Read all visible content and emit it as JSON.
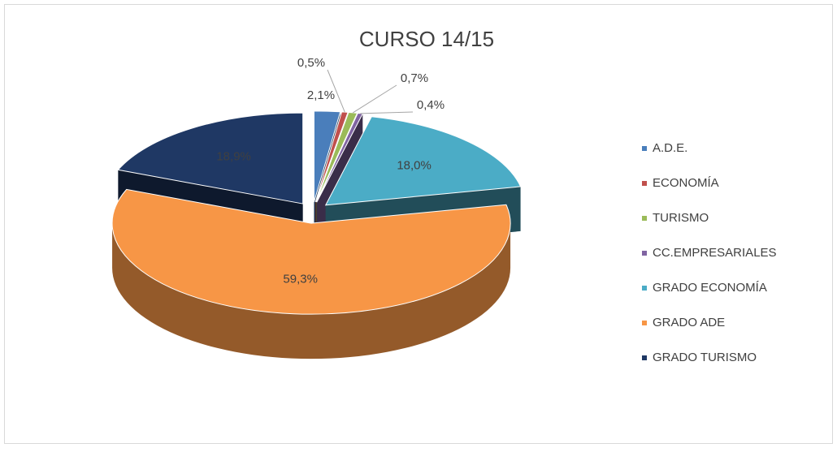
{
  "chart_data": {
    "type": "pie",
    "title": "CURSO 14/15",
    "categories": [
      "A.D.E.",
      "ECONOMÍA",
      "TURISMO",
      "CC.EMPRESARIALES",
      "GRADO  ECONOMÍA",
      "GRADO  ADE",
      "GRADO TURISMO"
    ],
    "values": [
      2.1,
      0.5,
      0.7,
      0.4,
      18.0,
      59.3,
      18.9
    ],
    "value_labels": [
      "2,1%",
      "0,5%",
      "0,7%",
      "0,4%",
      "18,0%",
      "59,3%",
      "18,9%"
    ],
    "colors": [
      "#4a7ebb",
      "#c0504d",
      "#9bbb59",
      "#8064a2",
      "#4bacc6",
      "#f79646",
      "#1f3864"
    ],
    "legend": "right"
  }
}
